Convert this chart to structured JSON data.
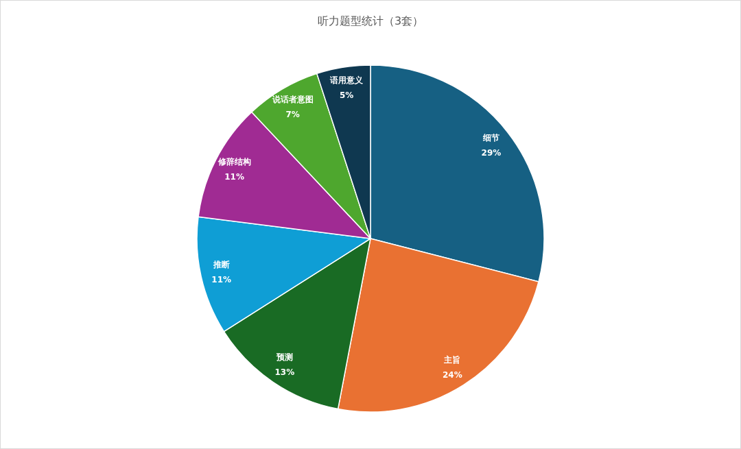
{
  "chart_data": {
    "type": "pie",
    "title": "听力题型统计（3套）",
    "categories": [
      "细节",
      "主旨",
      "预测",
      "推断",
      "修辞结构",
      "说话者意图",
      "语用意义"
    ],
    "values": [
      29,
      24,
      13,
      11,
      11,
      7,
      5
    ],
    "value_labels": [
      "29%",
      "24%",
      "13%",
      "11%",
      "11%",
      "7%",
      "5%"
    ],
    "colors": [
      "#166083",
      "#e97132",
      "#196b24",
      "#0f9ed5",
      "#a02b93",
      "#4ea72e",
      "#0f3850"
    ]
  }
}
